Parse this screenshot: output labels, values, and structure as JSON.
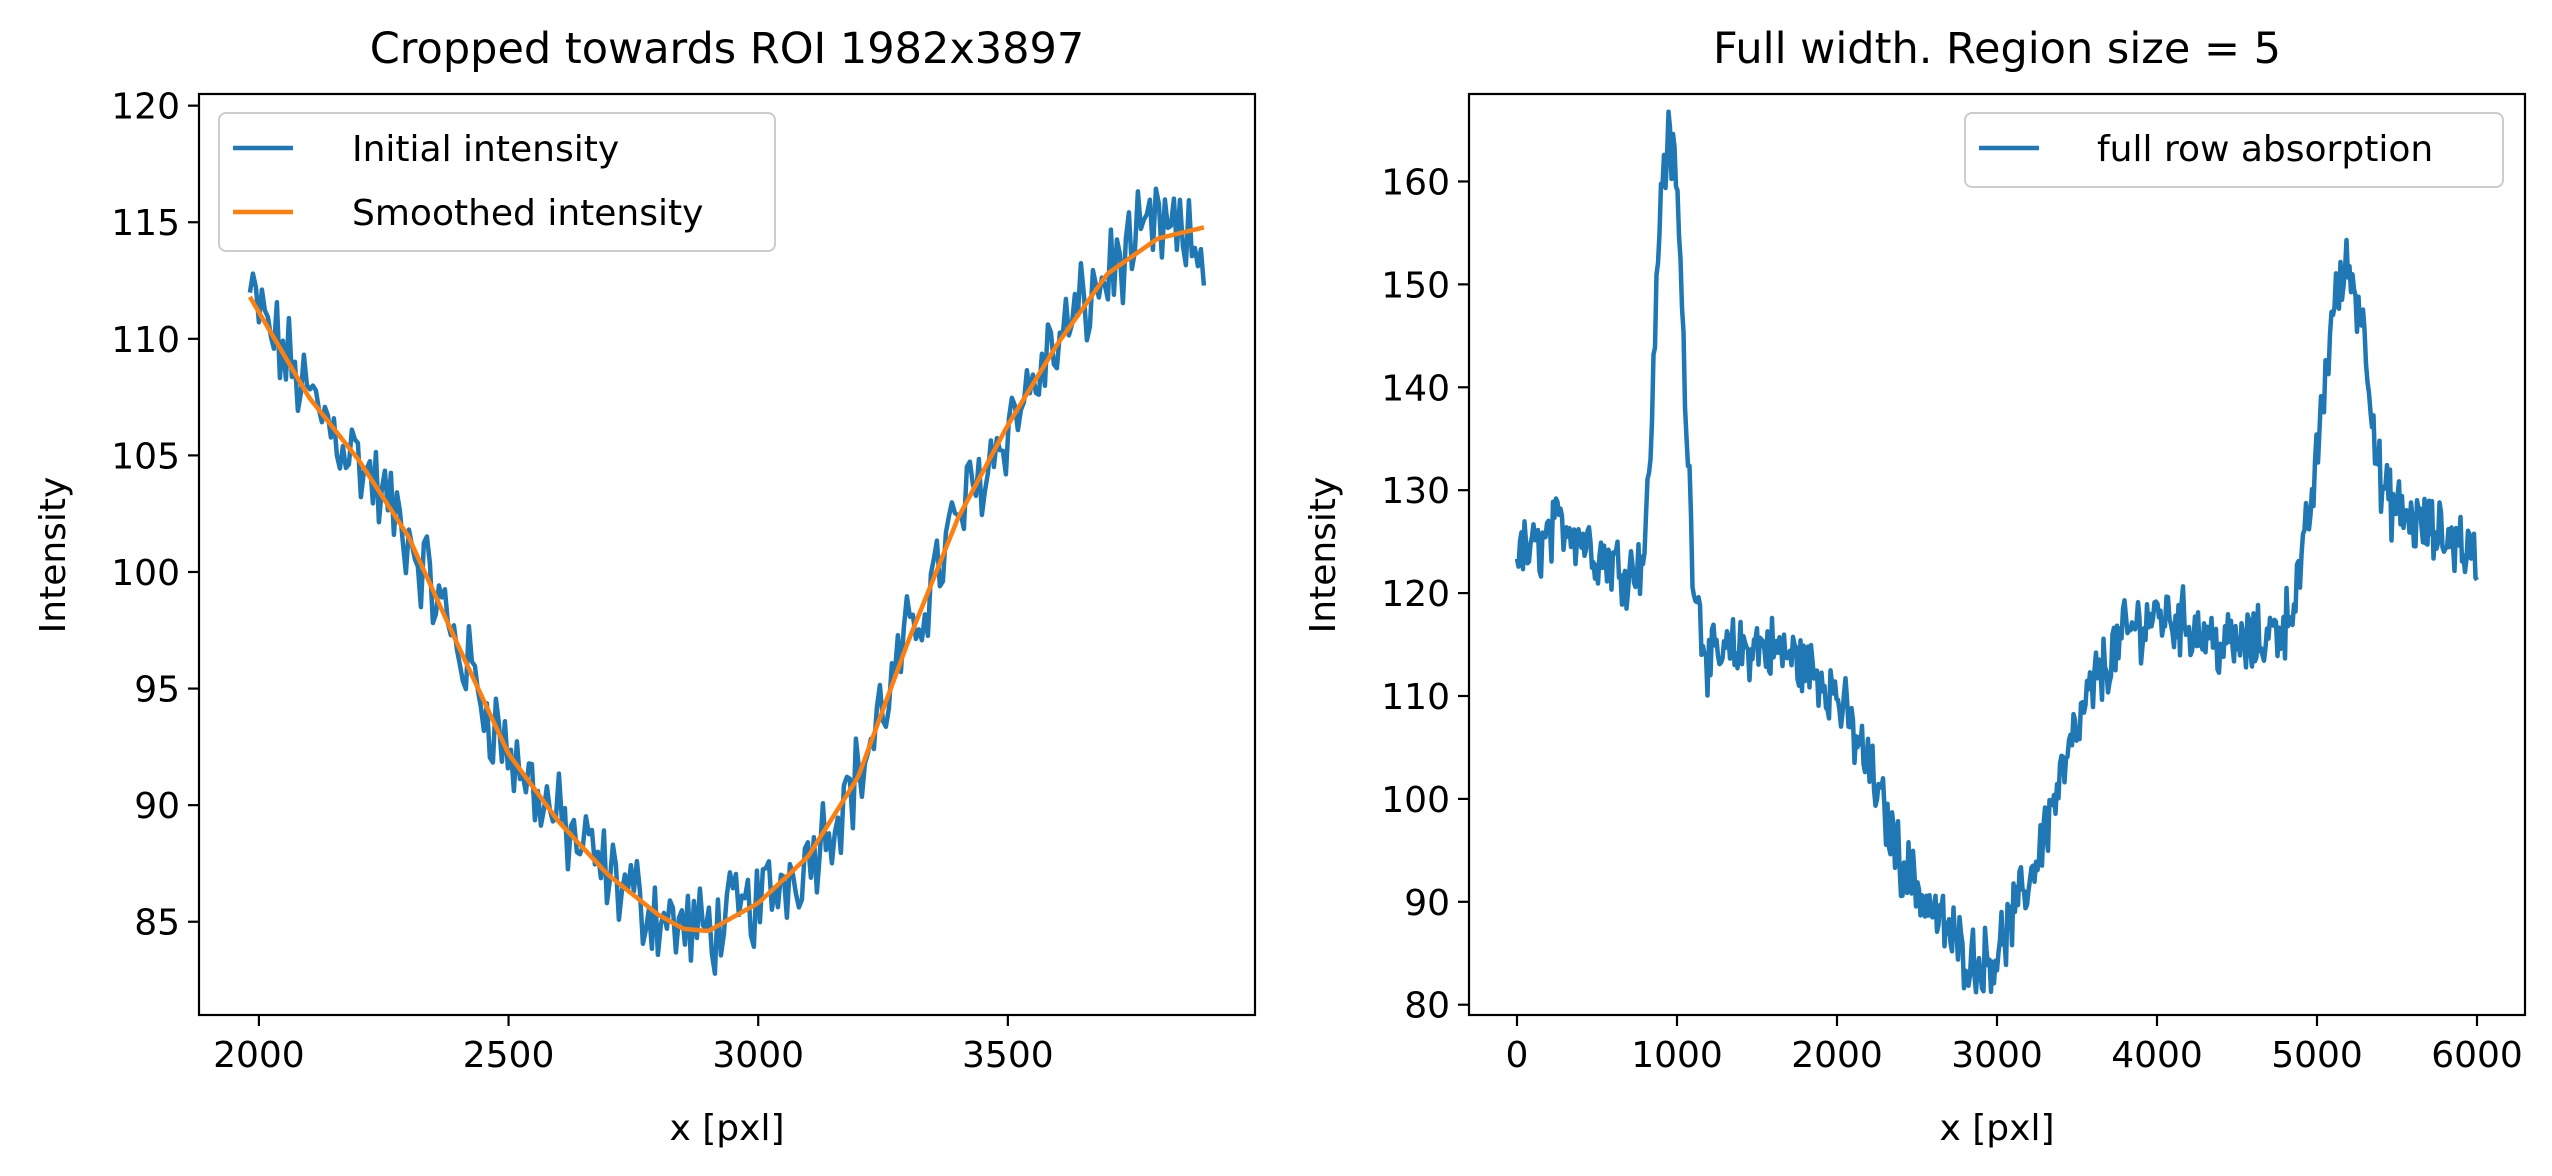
{
  "chart_data": [
    {
      "type": "line",
      "title": "Cropped towards ROI 1982x3897",
      "xlabel": "x [pxl]",
      "ylabel": "Intensity",
      "xlim": [
        1880,
        3995
      ],
      "ylim": [
        81,
        120.5
      ],
      "xticks": [
        2000,
        2500,
        3000,
        3500
      ],
      "yticks": [
        85,
        90,
        95,
        100,
        105,
        110,
        115,
        120
      ],
      "grid": false,
      "legend_position": "top-left",
      "series": [
        {
          "name": "Initial intensity",
          "color": "#1f77b4",
          "noisy": true,
          "x": [
            1982,
            2100,
            2200,
            2300,
            2400,
            2500,
            2600,
            2700,
            2800,
            2850,
            2900,
            3000,
            3100,
            3200,
            3300,
            3400,
            3500,
            3600,
            3700,
            3800,
            3897
          ],
          "y": [
            111.8,
            107.5,
            104.8,
            101.5,
            96.8,
            92.2,
            89.3,
            87.0,
            85.3,
            84.7,
            84.6,
            85.8,
            87.8,
            91.2,
            97.0,
            102.3,
            106.3,
            109.8,
            112.8,
            114.8,
            113.5
          ]
        },
        {
          "name": "Smoothed intensity",
          "color": "#ff7f0e",
          "noisy": false,
          "x": [
            1982,
            2100,
            2200,
            2300,
            2400,
            2500,
            2600,
            2700,
            2800,
            2850,
            2900,
            3000,
            3100,
            3200,
            3300,
            3400,
            3500,
            3600,
            3700,
            3800,
            3897
          ],
          "y": [
            111.8,
            107.5,
            104.8,
            101.5,
            96.8,
            92.2,
            89.3,
            87.0,
            85.3,
            84.7,
            84.6,
            85.8,
            87.8,
            91.2,
            97.0,
            102.3,
            106.3,
            109.8,
            112.8,
            114.3,
            114.8
          ]
        }
      ]
    },
    {
      "type": "line",
      "title": "Full width. Region size = 5",
      "xlabel": "x [pxl]",
      "ylabel": "Intensity",
      "xlim": [
        -300,
        6300
      ],
      "ylim": [
        79,
        168.5
      ],
      "xticks": [
        0,
        1000,
        2000,
        3000,
        4000,
        5000,
        6000
      ],
      "yticks": [
        80,
        90,
        100,
        110,
        120,
        130,
        140,
        150,
        160
      ],
      "grid": false,
      "legend_position": "top-right",
      "series": [
        {
          "name": "full row absorption",
          "color": "#1f77b4",
          "noisy": true,
          "x": [
            0,
            100,
            300,
            500,
            700,
            800,
            850,
            900,
            950,
            1000,
            1050,
            1100,
            1150,
            1200,
            1300,
            1500,
            1700,
            1900,
            2000,
            2200,
            2400,
            2600,
            2800,
            2900,
            3000,
            3200,
            3400,
            3600,
            3800,
            4000,
            4200,
            4400,
            4600,
            4800,
            4900,
            5000,
            5100,
            5200,
            5300,
            5400,
            5500,
            5700,
            5900,
            6000
          ],
          "y": [
            124,
            124,
            127,
            124,
            122,
            124,
            140,
            160,
            164,
            160,
            140,
            123,
            117,
            113,
            114,
            115,
            114,
            112,
            110,
            103,
            94,
            89,
            85,
            84,
            85,
            92,
            102,
            111,
            116,
            118,
            117,
            115,
            115,
            117,
            122,
            133,
            148,
            152,
            145,
            130,
            128,
            126,
            125,
            123
          ]
        }
      ]
    }
  ]
}
